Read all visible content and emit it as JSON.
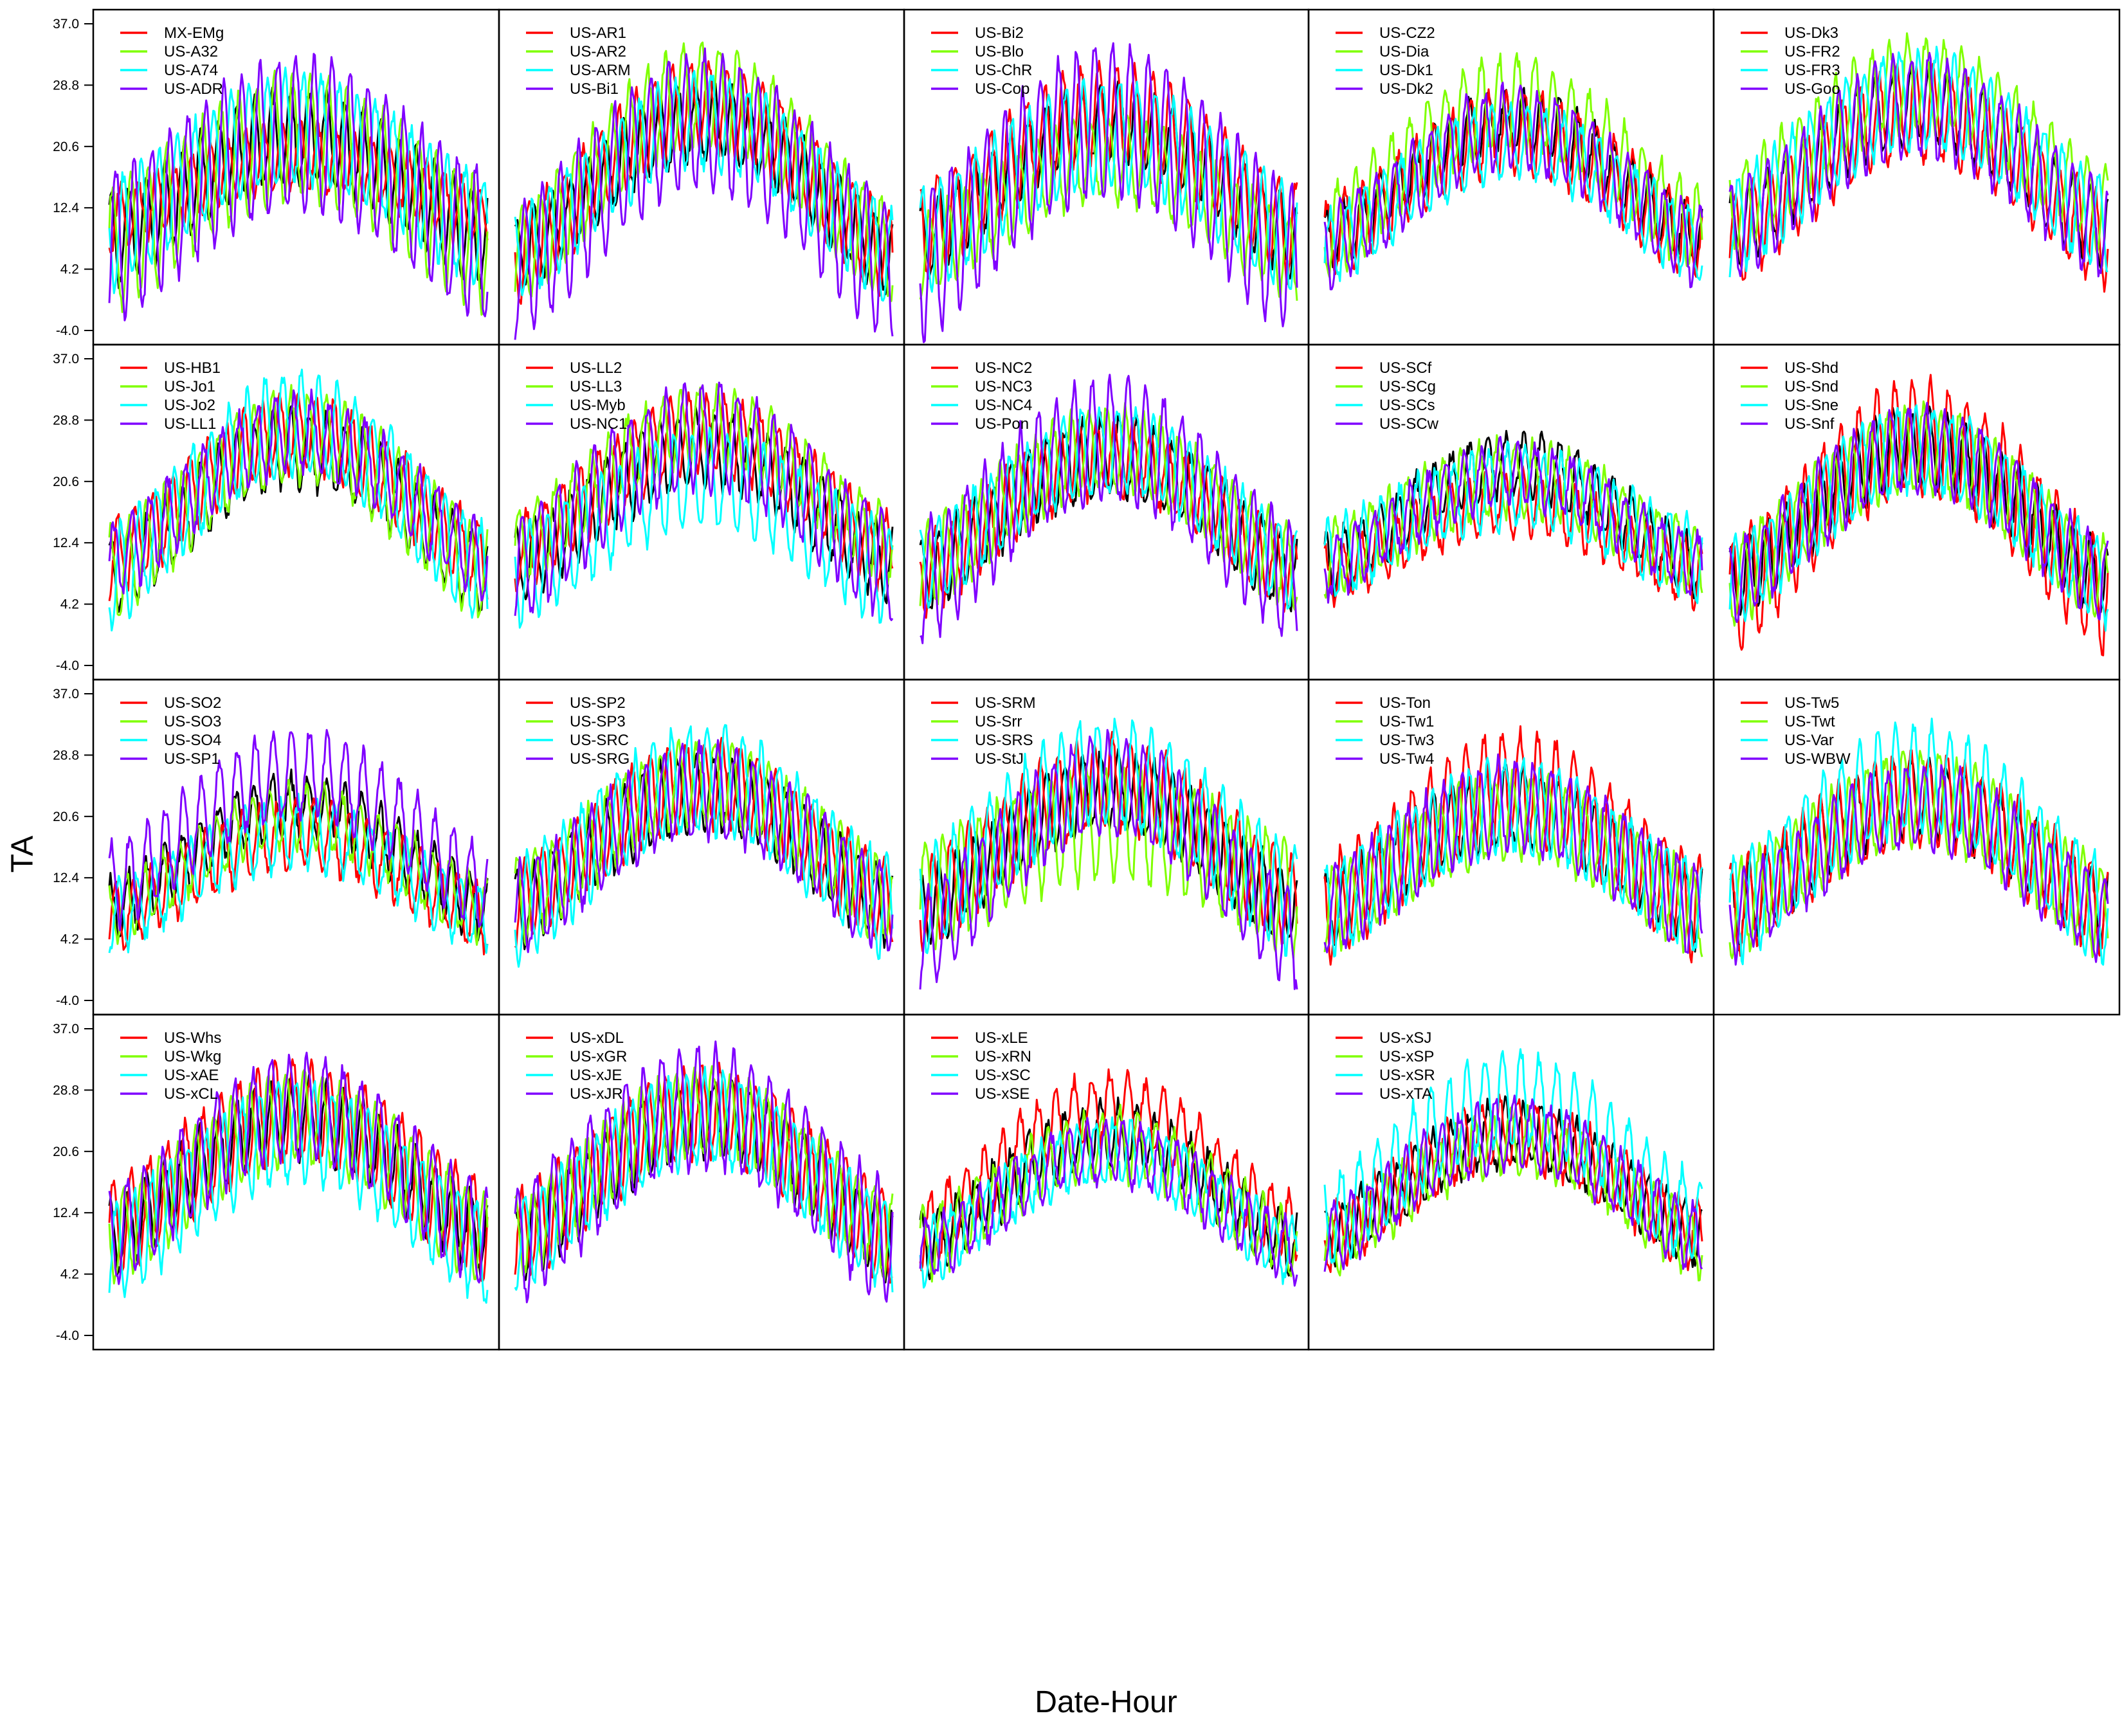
{
  "chart_data": {
    "type": "line",
    "xlabel": "Date-Hour",
    "ylabel": "TA",
    "ylim": [
      -4.0,
      37.0
    ],
    "yticks": [
      "37.0",
      "28.8",
      "20.6",
      "12.4",
      "4.2",
      "-4.0"
    ],
    "layout": "small-multiples, 4 rows x 5 columns, shared y axis on left column",
    "reference_series_color": "#000000",
    "series_colors": [
      "#ff0000",
      "#7fff00",
      "#00ffff",
      "#7f00ff"
    ],
    "panels": [
      {
        "legend": [
          "MX-EMg",
          "US-A32",
          "US-A74",
          "US-ADR"
        ],
        "base": 8,
        "amp": 14,
        "diurnal": 6,
        "offsets": [
          3,
          -1,
          1,
          -1
        ],
        "amps": [
          0.6,
          1.05,
          1.0,
          1.1
        ],
        "diurn": [
          0.7,
          1.4,
          1.2,
          1.7
        ]
      },
      {
        "legend": [
          "US-AR1",
          "US-AR2",
          "US-ARM",
          "US-Bi1"
        ],
        "base": 6,
        "amp": 18,
        "diurnal": 5,
        "offsets": [
          0,
          0,
          0,
          -2
        ],
        "amps": [
          1.1,
          1.2,
          1.0,
          1.1
        ],
        "diurn": [
          1.2,
          1.3,
          1.2,
          1.8
        ]
      },
      {
        "legend": [
          "US-Bi2",
          "US-Blo",
          "US-ChR",
          "US-Cop"
        ],
        "base": 8,
        "amp": 16,
        "diurnal": 5,
        "offsets": [
          1,
          -2,
          0,
          -3
        ],
        "amps": [
          1.0,
          0.8,
          0.9,
          1.2
        ],
        "diurn": [
          1.3,
          1.1,
          1.4,
          2.0
        ]
      },
      {
        "legend": [
          "US-CZ2",
          "US-Dia",
          "US-Dk1",
          "US-Dk2"
        ],
        "base": 8,
        "amp": 16,
        "diurnal": 4,
        "offsets": [
          0,
          1,
          -1,
          -1
        ],
        "amps": [
          0.9,
          1.1,
          0.9,
          1.0
        ],
        "diurn": [
          1.3,
          1.5,
          1.2,
          1.3
        ]
      },
      {
        "legend": [
          "US-Dk3",
          "US-FR2",
          "US-FR3",
          "US-Goo"
        ],
        "base": 9,
        "amp": 17,
        "diurnal": 5,
        "offsets": [
          -1,
          3,
          1,
          0
        ],
        "amps": [
          1.0,
          1.0,
          1.0,
          1.0
        ],
        "diurn": [
          1.2,
          1.2,
          1.3,
          1.3
        ]
      },
      {
        "legend": [
          "US-HB1",
          "US-Jo1",
          "US-Jo2",
          "US-LL1"
        ],
        "base": 8,
        "amp": 17,
        "diurnal": 5,
        "offsets": [
          2,
          0,
          0,
          2
        ],
        "amps": [
          1.0,
          1.1,
          1.2,
          1.0
        ],
        "diurn": [
          1.0,
          1.2,
          1.3,
          1.0
        ]
      },
      {
        "legend": [
          "US-LL2",
          "US-LL3",
          "US-Myb",
          "US-NC1"
        ],
        "base": 9,
        "amp": 16,
        "diurnal": 5,
        "offsets": [
          2,
          3,
          -1,
          0
        ],
        "amps": [
          1.0,
          1.0,
          0.8,
          1.1
        ],
        "diurn": [
          1.0,
          1.0,
          1.3,
          1.4
        ]
      },
      {
        "legend": [
          "US-NC2",
          "US-NC3",
          "US-NC4",
          "US-Pon"
        ],
        "base": 8,
        "amp": 16,
        "diurnal": 5,
        "offsets": [
          0,
          1,
          1,
          -1
        ],
        "amps": [
          1.0,
          1.0,
          1.0,
          1.2
        ],
        "diurn": [
          1.0,
          1.1,
          1.1,
          1.6
        ]
      },
      {
        "legend": [
          "US-SCf",
          "US-SCg",
          "US-SCs",
          "US-SCw"
        ],
        "base": 9,
        "amp": 14,
        "diurnal": 4,
        "offsets": [
          -1,
          1,
          1,
          0
        ],
        "amps": [
          0.7,
          0.8,
          0.7,
          0.9
        ],
        "diurn": [
          1.0,
          1.2,
          1.3,
          1.0
        ]
      },
      {
        "legend": [
          "US-Shd",
          "US-Snd",
          "US-Sne",
          "US-Snf"
        ],
        "base": 7,
        "amp": 18,
        "diurnal": 5,
        "offsets": [
          -2,
          0,
          0,
          0
        ],
        "amps": [
          1.2,
          1.0,
          1.0,
          1.0
        ],
        "diurn": [
          1.5,
          1.1,
          1.1,
          1.1
        ]
      },
      {
        "legend": [
          "US-SO2",
          "US-SO3",
          "US-SO4",
          "US-SP1"
        ],
        "base": 8,
        "amp": 14,
        "diurnal": 4,
        "offsets": [
          -1,
          0,
          -1,
          3
        ],
        "amps": [
          0.8,
          0.9,
          0.8,
          1.1
        ],
        "diurn": [
          1.1,
          1.0,
          1.1,
          1.4
        ]
      },
      {
        "legend": [
          "US-SP2",
          "US-SP3",
          "US-SRC",
          "US-SRG"
        ],
        "base": 8,
        "amp": 16,
        "diurnal": 5,
        "offsets": [
          1,
          1,
          0,
          0
        ],
        "amps": [
          1.0,
          1.0,
          1.1,
          1.0
        ],
        "diurn": [
          1.1,
          1.1,
          1.4,
          1.2
        ]
      },
      {
        "legend": [
          "US-SRM",
          "US-Srr",
          "US-SRS",
          "US-StJ"
        ],
        "base": 8,
        "amp": 16,
        "diurnal": 5,
        "offsets": [
          1,
          2,
          1,
          -4
        ],
        "amps": [
          1.0,
          0.6,
          1.1,
          1.3
        ],
        "diurn": [
          1.2,
          1.5,
          1.4,
          1.3
        ]
      },
      {
        "legend": [
          "US-Ton",
          "US-Tw1",
          "US-Tw3",
          "US-Tw4"
        ],
        "base": 8,
        "amp": 14,
        "diurnal": 5,
        "offsets": [
          0,
          0,
          0,
          0
        ],
        "amps": [
          1.2,
          0.9,
          1.0,
          1.0
        ],
        "diurn": [
          1.4,
          1.1,
          1.2,
          1.2
        ]
      },
      {
        "legend": [
          "US-Tw5",
          "US-Twt",
          "US-Var",
          "US-WBW"
        ],
        "base": 8,
        "amp": 15,
        "diurnal": 5,
        "offsets": [
          0,
          0,
          0,
          -1
        ],
        "amps": [
          1.0,
          1.0,
          1.2,
          1.0
        ],
        "diurn": [
          1.2,
          1.2,
          1.4,
          1.1
        ]
      },
      {
        "legend": [
          "US-Whs",
          "US-Wkg",
          "US-xAE",
          "US-xCL"
        ],
        "base": 9,
        "amp": 16,
        "diurnal": 5,
        "offsets": [
          1,
          0,
          -2,
          0
        ],
        "amps": [
          1.0,
          1.0,
          1.0,
          1.1
        ],
        "diurn": [
          1.3,
          1.2,
          1.3,
          1.3
        ]
      },
      {
        "legend": [
          "US-xDL",
          "US-xGR",
          "US-xJE",
          "US-xJR"
        ],
        "base": 8,
        "amp": 17,
        "diurnal": 5,
        "offsets": [
          1,
          1,
          0,
          0
        ],
        "amps": [
          1.0,
          1.0,
          1.0,
          1.1
        ],
        "diurn": [
          1.2,
          1.1,
          1.2,
          1.6
        ]
      },
      {
        "legend": [
          "US-xLE",
          "US-xRN",
          "US-xSC",
          "US-xSE"
        ],
        "base": 8,
        "amp": 15,
        "diurnal": 4,
        "offsets": [
          2,
          0,
          -1,
          -1
        ],
        "amps": [
          1.1,
          0.9,
          0.9,
          0.9
        ],
        "diurn": [
          1.1,
          1.1,
          1.0,
          1.0
        ]
      },
      {
        "legend": [
          "US-xSJ",
          "US-xSP",
          "US-xSR",
          "US-xTA"
        ],
        "base": 9,
        "amp": 14,
        "diurnal": 4,
        "offsets": [
          0,
          -1,
          2,
          0
        ],
        "amps": [
          1.0,
          1.0,
          1.2,
          1.0
        ],
        "diurn": [
          1.1,
          1.0,
          1.5,
          1.1
        ]
      }
    ]
  }
}
